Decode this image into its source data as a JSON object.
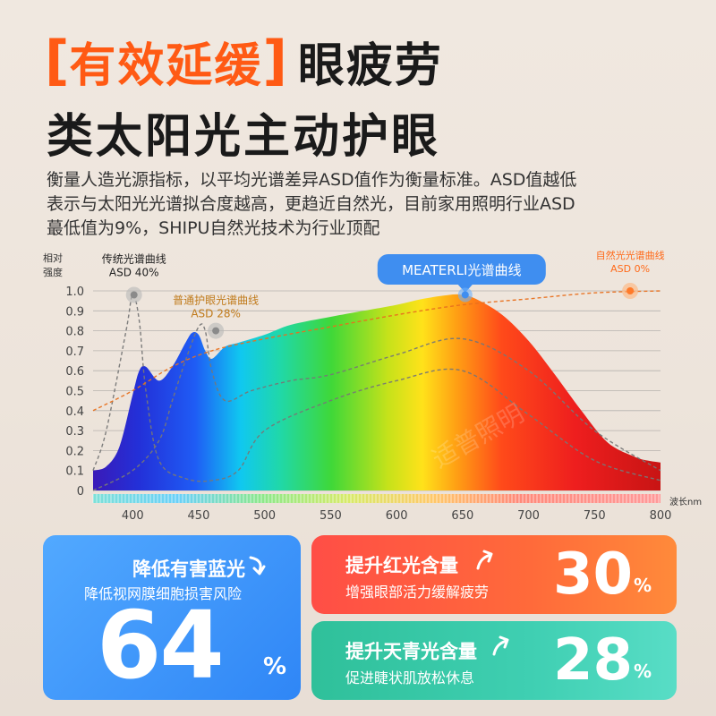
{
  "headline": {
    "highlight": "有效延缓",
    "bracket_open": "[",
    "bracket_close": "]",
    "rest": "眼疲劳",
    "line2": "类太阳光主动护眼"
  },
  "description": [
    "衡量人造光源指标，以平均光谱差异ASD值作为衡量标准。ASD值越低",
    "表示与太阳光光谱拟合度越高，更趋近自然光，目前家用照明行业ASD",
    "蕞低值为9%，SHIPU自然光技术为行业顶配"
  ],
  "chart_data": {
    "type": "line",
    "ylabel": "相对\n强度",
    "xlabel": "波长nm",
    "xlim": [
      370,
      800
    ],
    "ylim": [
      0,
      1.0
    ],
    "y_ticks": [
      "0",
      "0.1",
      "0.2",
      "0.3",
      "0.4",
      "0.5",
      "0.6",
      "0.7",
      "0.8",
      "0.9",
      "1.0"
    ],
    "x_ticks": [
      400,
      450,
      500,
      550,
      600,
      650,
      700,
      750,
      800
    ],
    "grid": true,
    "watermark": "适普照明",
    "series": [
      {
        "name": "MEATERLI光谱曲线",
        "style": "spectrum-fill",
        "x": [
          370,
          380,
          390,
          400,
          405,
          410,
          420,
          430,
          440,
          445,
          450,
          455,
          460,
          470,
          480,
          500,
          520,
          550,
          575,
          600,
          620,
          640,
          650,
          660,
          680,
          700,
          720,
          740,
          760,
          780,
          790,
          800
        ],
        "y": [
          0.1,
          0.12,
          0.22,
          0.48,
          0.6,
          0.62,
          0.55,
          0.62,
          0.74,
          0.79,
          0.78,
          0.7,
          0.66,
          0.72,
          0.74,
          0.78,
          0.83,
          0.87,
          0.9,
          0.93,
          0.96,
          0.98,
          0.98,
          0.96,
          0.88,
          0.75,
          0.58,
          0.4,
          0.24,
          0.17,
          0.15,
          0.14
        ]
      },
      {
        "name": "传统光谱曲线",
        "style": "dashed-gray",
        "x": [
          370,
          380,
          395,
          400,
          405,
          410,
          420,
          440,
          460,
          480,
          500,
          550,
          600,
          650,
          700,
          750,
          800
        ],
        "y": [
          0.1,
          0.3,
          0.8,
          0.98,
          0.85,
          0.5,
          0.15,
          0.06,
          0.05,
          0.1,
          0.3,
          0.45,
          0.55,
          0.6,
          0.38,
          0.15,
          0.05
        ]
      },
      {
        "name": "普通护眼光谱曲线",
        "style": "dashed-gray",
        "x": [
          370,
          400,
          420,
          430,
          440,
          450,
          455,
          460,
          470,
          490,
          520,
          550,
          600,
          650,
          700,
          750,
          800
        ],
        "y": [
          0.0,
          0.1,
          0.25,
          0.45,
          0.65,
          0.82,
          0.8,
          0.6,
          0.45,
          0.5,
          0.55,
          0.58,
          0.68,
          0.76,
          0.6,
          0.3,
          0.1
        ]
      },
      {
        "name": "自然光光谱曲线",
        "style": "dashed-orange",
        "x": [
          370,
          400,
          430,
          460,
          500,
          550,
          600,
          650,
          700,
          750,
          800
        ],
        "y": [
          0.4,
          0.5,
          0.62,
          0.7,
          0.76,
          0.82,
          0.88,
          0.93,
          0.96,
          0.99,
          1.0
        ]
      }
    ],
    "annotations": [
      {
        "label": "传统光谱曲线",
        "sub": "ASD 40%",
        "x": 401,
        "y": 0.98,
        "color": "#222222"
      },
      {
        "label": "普通护眼光谱曲线",
        "sub": "ASD 28%",
        "x": 463,
        "y": 0.8,
        "color": "#c07a1a"
      },
      {
        "label": "MEATERLI光谱曲线",
        "sub": "",
        "x": 652,
        "y": 0.98,
        "color": "#ffffff",
        "badge": true
      },
      {
        "label": "自然光光谱曲线",
        "sub": "ASD 0%",
        "x": 777,
        "y": 1.0,
        "color": "#ff6a1a"
      }
    ]
  },
  "cards": {
    "blue": {
      "title": "降低有害蓝光",
      "subtitle": "降低视网膜细胞损害风险",
      "value": "64",
      "unit": "%"
    },
    "red": {
      "title": "提升红光含量",
      "subtitle": "增强眼部活力缓解疲劳",
      "value": "30",
      "unit": "%"
    },
    "green": {
      "title": "提升天青光含量",
      "subtitle": "促进睫状肌放松休息",
      "value": "28",
      "unit": "%"
    }
  },
  "colors": {
    "accent": "#ff5a14",
    "blue_card": "#3f97fb",
    "red_card": "#ff5340",
    "green_card": "#36c8a6"
  },
  "icons": {
    "blue": "arrow-down-icon",
    "red": "arrow-up-icon",
    "green": "arrow-up-icon"
  }
}
